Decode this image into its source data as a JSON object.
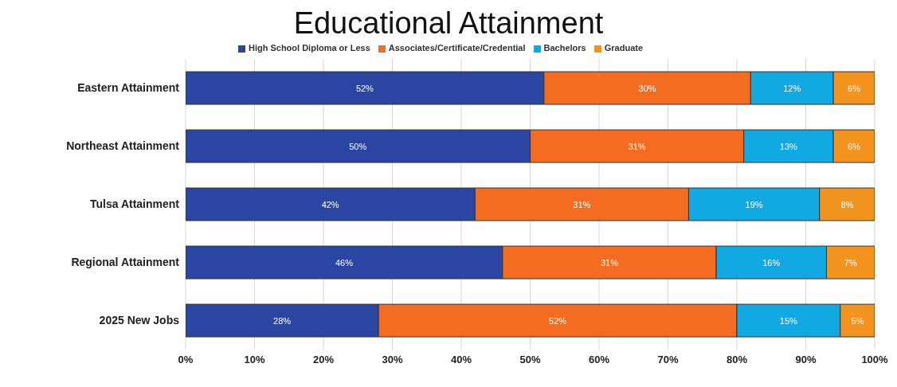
{
  "chart_data": {
    "type": "bar",
    "orientation": "horizontal",
    "stacked": true,
    "title": "Educational Attainment",
    "categories": [
      "Eastern Attainment",
      "Northeast Attainment",
      "Tulsa Attainment",
      "Regional Attainment",
      "2025 New Jobs"
    ],
    "series": [
      {
        "name": "High School Diploma or Less",
        "color": "#2b46a2",
        "values": [
          52,
          50,
          42,
          46,
          28
        ],
        "value_labels": [
          "52%",
          "50%",
          "42%",
          "46%",
          "28%"
        ]
      },
      {
        "name": "Associates/Certificate/Credential",
        "color": "#f36c22",
        "values": [
          30,
          31,
          31,
          31,
          52
        ],
        "value_labels": [
          "30%",
          "31%",
          "31%",
          "31%",
          "52%"
        ]
      },
      {
        "name": "Bachelors",
        "color": "#12a8e2",
        "values": [
          12,
          13,
          19,
          16,
          15
        ],
        "value_labels": [
          "12%",
          "13%",
          "19%",
          "16%",
          "15%"
        ]
      },
      {
        "name": "Graduate",
        "color": "#f39320",
        "values": [
          6,
          6,
          8,
          7,
          5
        ],
        "value_labels": [
          "6%",
          "6%",
          "8%",
          "7%",
          "5%"
        ]
      }
    ],
    "xlim": [
      0,
      100
    ],
    "xticks": [
      {
        "value": 0,
        "label": "0%"
      },
      {
        "value": 10,
        "label": "10%"
      },
      {
        "value": 20,
        "label": "20%"
      },
      {
        "value": 30,
        "label": "30%"
      },
      {
        "value": 40,
        "label": "40%"
      },
      {
        "value": 50,
        "label": "50%"
      },
      {
        "value": 60,
        "label": "60%"
      },
      {
        "value": 70,
        "label": "70%"
      },
      {
        "value": 80,
        "label": "80%"
      },
      {
        "value": 90,
        "label": "90%"
      },
      {
        "value": 100,
        "label": "100%"
      }
    ],
    "grid": "x",
    "legend": "top"
  }
}
